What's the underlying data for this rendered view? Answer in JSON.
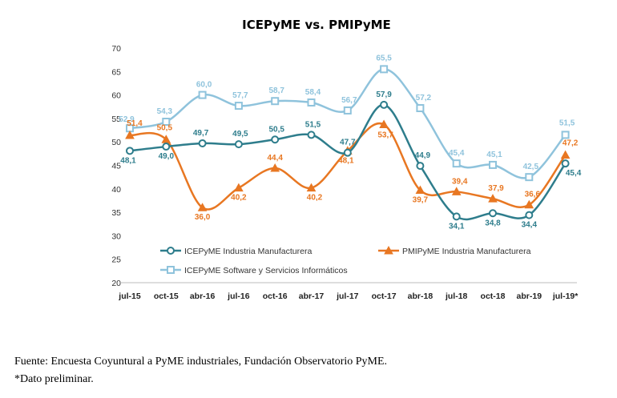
{
  "chart_data": {
    "type": "line",
    "title": "ICEPyME vs. PMIPyME",
    "xlabel": "",
    "ylabel": "",
    "categories": [
      "jul-15",
      "oct-15",
      "abr-16",
      "jul-16",
      "oct-16",
      "abr-17",
      "jul-17",
      "oct-17",
      "abr-18",
      "jul-18",
      "oct-18",
      "abr-19",
      "jul-19*"
    ],
    "ylim": [
      20,
      70
    ],
    "yticks": [
      20,
      25,
      30,
      35,
      40,
      45,
      50,
      55,
      60,
      65,
      70
    ],
    "legend_position": "bottom-left",
    "series": [
      {
        "name": "ICEPyME Industria Manufacturera",
        "color": "#2e7d8c",
        "marker": "circle",
        "values": [
          48.1,
          49.0,
          49.7,
          49.5,
          50.5,
          51.5,
          47.7,
          57.9,
          44.9,
          34.1,
          34.8,
          34.4,
          45.4
        ],
        "labels": [
          "48,1",
          "49,0",
          "49,7",
          "49,5",
          "50,5",
          "51,5",
          "47,7",
          "57,9",
          "44,9",
          "34,1",
          "34,8",
          "34,4",
          "45,4"
        ]
      },
      {
        "name": "PMIPyME Industria Manufacturera",
        "color": "#e87722",
        "marker": "triangle",
        "values": [
          51.4,
          50.5,
          36.0,
          40.2,
          44.4,
          40.2,
          48.1,
          53.7,
          39.7,
          39.4,
          37.9,
          36.6,
          47.2
        ],
        "labels": [
          "51,4",
          "50,5",
          "36,0",
          "40,2",
          "44,4",
          "40,2",
          "48,1",
          "53,7",
          "39,7",
          "39,4",
          "37,9",
          "36,6",
          "47,2"
        ]
      },
      {
        "name": "ICEPyME Software y Servicios Informáticos",
        "color": "#8fc3dc",
        "marker": "square",
        "values": [
          52.9,
          54.3,
          60.0,
          57.7,
          58.7,
          58.4,
          56.7,
          65.5,
          57.2,
          45.4,
          45.1,
          42.5,
          51.5
        ],
        "labels": [
          "52,9",
          "54,3",
          "60,0",
          "57,7",
          "58,7",
          "58,4",
          "56,7",
          "65,5",
          "57,2",
          "45,4",
          "45,1",
          "42,5",
          "51,5"
        ]
      }
    ]
  },
  "footnotes": {
    "source": "Fuente: Encuesta Coyuntural a PyME industriales, Fundación Observatorio PyME.",
    "preliminary": "*Dato preliminar."
  }
}
